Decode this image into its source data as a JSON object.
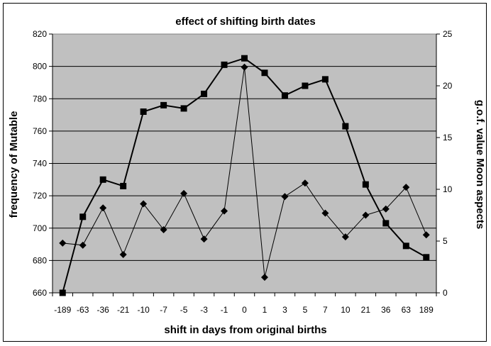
{
  "chart_data": {
    "type": "line",
    "title": "effect of shifting birth dates",
    "xlabel": "shift in days from original births",
    "ylabel_left": "frequency of Mutable",
    "ylabel_right": "g.o.f. value Moon aspects",
    "categories": [
      "-189",
      "-63",
      "-36",
      "-21",
      "-10",
      "-7",
      "-5",
      "-3",
      "-1",
      "0",
      "1",
      "3",
      "5",
      "7",
      "10",
      "21",
      "36",
      "63",
      "189"
    ],
    "y_left": {
      "min": 660,
      "max": 820,
      "step": 20,
      "ticks": [
        "660",
        "680",
        "700",
        "720",
        "740",
        "760",
        "780",
        "800",
        "820"
      ]
    },
    "y_right": {
      "min": 0,
      "max": 25,
      "step": 5,
      "ticks": [
        "0",
        "5",
        "10",
        "15",
        "20",
        "25"
      ]
    },
    "series": [
      {
        "name": "frequency of Mutable",
        "axis": "left",
        "marker": "square",
        "values": [
          660,
          707,
          730,
          726,
          772,
          776,
          774,
          783,
          801,
          805,
          796,
          782,
          788,
          792,
          763,
          727,
          703,
          689,
          682
        ]
      },
      {
        "name": "g.o.f. value Moon aspects",
        "axis": "right",
        "marker": "diamond",
        "values": [
          4.8,
          4.6,
          8.2,
          3.7,
          8.6,
          6.1,
          9.6,
          5.2,
          7.9,
          21.8,
          1.5,
          9.3,
          10.6,
          7.7,
          5.4,
          7.5,
          8.1,
          10.2,
          5.6
        ]
      }
    ],
    "colors": {
      "plot_background": "#c0c0c0",
      "series": "#000000",
      "grid": "#000000"
    }
  }
}
